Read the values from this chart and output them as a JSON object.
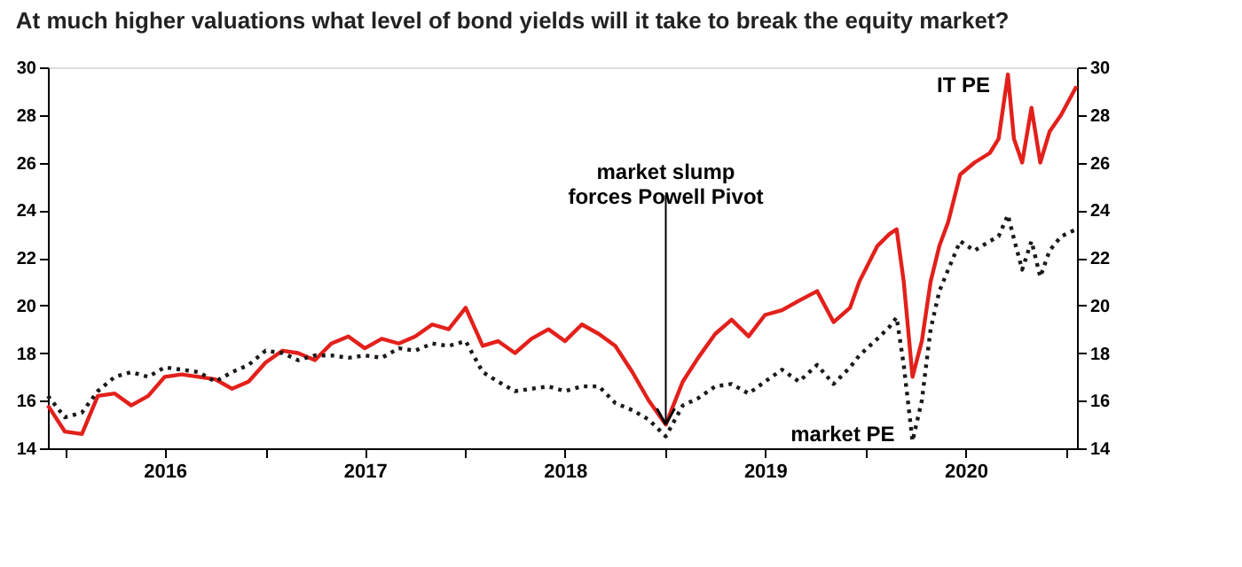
{
  "chart_data": {
    "type": "line",
    "title": "At much higher valuations what level of bond yields will it take to break the equity market?",
    "xlim": [
      "2015-12-01",
      "2021-01-20"
    ],
    "xticks": [
      {
        "value": "2016-01-01",
        "label": null
      },
      {
        "value": "2016-07-01",
        "label": "2016"
      },
      {
        "value": "2017-01-01",
        "label": null
      },
      {
        "value": "2017-07-01",
        "label": "2017"
      },
      {
        "value": "2018-01-01",
        "label": null
      },
      {
        "value": "2018-07-01",
        "label": "2018"
      },
      {
        "value": "2019-01-01",
        "label": null
      },
      {
        "value": "2019-07-01",
        "label": "2019"
      },
      {
        "value": "2020-01-01",
        "label": null
      },
      {
        "value": "2020-07-01",
        "label": "2020"
      },
      {
        "value": "2021-01-01",
        "label": null
      }
    ],
    "ylim": [
      14,
      30
    ],
    "yticks": [
      14,
      16,
      18,
      20,
      22,
      24,
      26,
      28,
      30
    ],
    "y2lim": [
      14,
      30
    ],
    "y2ticks": [
      14,
      16,
      18,
      20,
      22,
      24,
      26,
      28,
      30
    ],
    "grid": false,
    "legend": false,
    "marker": "none",
    "x": [
      "2015-12-01",
      "2016-01-01",
      "2016-02-01",
      "2016-03-01",
      "2016-04-01",
      "2016-05-01",
      "2016-06-01",
      "2016-07-01",
      "2016-08-01",
      "2016-09-01",
      "2016-10-01",
      "2016-11-01",
      "2016-12-01",
      "2017-01-01",
      "2017-02-01",
      "2017-03-01",
      "2017-04-01",
      "2017-05-01",
      "2017-06-01",
      "2017-07-01",
      "2017-08-01",
      "2017-09-01",
      "2017-10-01",
      "2017-11-01",
      "2017-12-01",
      "2018-01-01",
      "2018-02-01",
      "2018-03-01",
      "2018-04-01",
      "2018-05-01",
      "2018-06-01",
      "2018-07-01",
      "2018-08-01",
      "2018-09-01",
      "2018-10-01",
      "2018-11-01",
      "2018-12-01",
      "2019-01-01",
      "2019-02-01",
      "2019-03-01",
      "2019-04-01",
      "2019-05-01",
      "2019-06-01",
      "2019-07-01",
      "2019-08-01",
      "2019-09-01",
      "2019-10-04",
      "2019-11-03",
      "2019-12-03",
      "2019-12-20",
      "2020-01-22",
      "2020-02-13",
      "2020-02-26",
      "2020-03-10",
      "2020-03-26",
      "2020-04-12",
      "2020-04-28",
      "2020-05-14",
      "2020-05-30",
      "2020-06-21",
      "2020-07-17",
      "2020-08-14",
      "2020-08-30",
      "2020-09-16",
      "2020-09-27",
      "2020-10-12",
      "2020-10-29",
      "2020-11-14",
      "2020-12-01",
      "2020-12-22",
      "2021-01-19"
    ],
    "series": [
      {
        "name": "IT PE",
        "color": "#e3201b",
        "line_style": "solid",
        "values": [
          15.8,
          14.7,
          14.6,
          16.2,
          16.3,
          15.8,
          16.2,
          17.0,
          17.1,
          17.0,
          16.9,
          16.5,
          16.8,
          17.6,
          18.1,
          18.0,
          17.7,
          18.4,
          18.7,
          18.2,
          18.6,
          18.4,
          18.7,
          19.2,
          19.0,
          19.9,
          18.3,
          18.5,
          18.0,
          18.6,
          19.0,
          18.5,
          19.2,
          18.8,
          18.3,
          17.2,
          16.0,
          15.0,
          16.8,
          17.8,
          18.8,
          19.4,
          18.7,
          19.6,
          19.8,
          20.2,
          20.6,
          19.3,
          19.9,
          21.0,
          22.5,
          23.0,
          23.2,
          21.0,
          17.0,
          18.5,
          21.0,
          22.5,
          23.5,
          25.5,
          26.0,
          26.4,
          27.0,
          29.7,
          27.0,
          26.0,
          28.3,
          26.0,
          27.3,
          28.0,
          29.2
        ]
      },
      {
        "name": "market PE",
        "color": "#1a1a1a",
        "line_style": "dotted",
        "values": [
          16.2,
          15.3,
          15.5,
          16.4,
          17.0,
          17.2,
          17.0,
          17.4,
          17.3,
          17.2,
          16.8,
          17.2,
          17.5,
          18.1,
          18.0,
          17.7,
          17.9,
          17.9,
          17.8,
          17.9,
          17.8,
          18.2,
          18.1,
          18.4,
          18.3,
          18.5,
          17.2,
          16.8,
          16.4,
          16.5,
          16.6,
          16.4,
          16.6,
          16.6,
          15.9,
          15.6,
          15.2,
          14.5,
          15.8,
          16.1,
          16.6,
          16.7,
          16.3,
          16.8,
          17.3,
          16.8,
          17.5,
          16.7,
          17.4,
          17.9,
          18.6,
          19.1,
          19.5,
          17.5,
          14.3,
          16.0,
          19.0,
          20.6,
          21.5,
          22.7,
          22.3,
          22.7,
          22.9,
          23.8,
          22.8,
          21.5,
          22.7,
          21.2,
          22.3,
          22.9,
          23.2
        ]
      }
    ],
    "annotations": [
      {
        "text": "market slump\nforces Powell Pivot",
        "x": "2019-01-01",
        "y": 15.0
      }
    ]
  }
}
